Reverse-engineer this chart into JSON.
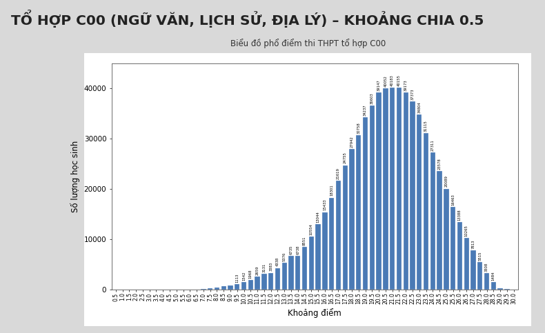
{
  "title_main": "TỔ HỢP C00 (NGỮ VĂN, LỊCH SỬ, ĐỊA LÝ) – KHOẢNG CHIA 0.5",
  "chart_title": "Biểu đồ phổ điểm thi THPT tổ hợp C00",
  "xlabel": "Khoảng điểm",
  "ylabel": "Số lượng học sinh",
  "bar_color": "#4a7ab5",
  "background_color": "#d9d9d9",
  "plot_background": "#ffffff",
  "panel_background": "#ffffff",
  "categories": [
    "0.5",
    "1.0",
    "1.5",
    "2.0",
    "2.5",
    "3.0",
    "3.5",
    "4.0",
    "4.5",
    "5.0",
    "5.5",
    "6.0",
    "6.5",
    "7.0",
    "7.5",
    "8.0",
    "8.5",
    "9.0",
    "9.5",
    "10.0",
    "10.5",
    "11.0",
    "11.5",
    "12.0",
    "12.5",
    "13.0",
    "13.5",
    "14.0",
    "14.5",
    "15.0",
    "15.5",
    "16.0",
    "16.5",
    "17.0",
    "17.5",
    "18.0",
    "18.5",
    "19.0",
    "19.5",
    "20.0",
    "20.5",
    "21.0",
    "21.5",
    "22.0",
    "22.5",
    "23.0",
    "23.5",
    "24.0",
    "24.5",
    "25.0",
    "25.5",
    "26.0",
    "26.5",
    "27.0",
    "27.5",
    "28.0",
    "28.5",
    "29.0",
    "29.5",
    "30.0"
  ],
  "values": [
    8,
    0,
    4,
    1,
    2,
    2,
    2,
    2,
    4,
    8,
    18,
    45,
    66,
    116,
    353,
    456,
    666,
    808,
    1113,
    1542,
    1968,
    2659,
    3131,
    3383,
    4338,
    5376,
    6735,
    6738,
    8551,
    10554,
    13044,
    15433,
    18301,
    21619,
    24755,
    27942,
    30758,
    34237,
    36603,
    39147,
    40052,
    40183,
    40155,
    39173,
    37373,
    34804,
    31115,
    27311,
    23578,
    20089,
    16463,
    13388,
    10265,
    7813,
    5515,
    3308,
    1484,
    365,
    191,
    19
  ],
  "ylim": [
    0,
    45000
  ],
  "yticks": [
    0,
    10000,
    20000,
    30000,
    40000
  ],
  "label_threshold": 1100
}
